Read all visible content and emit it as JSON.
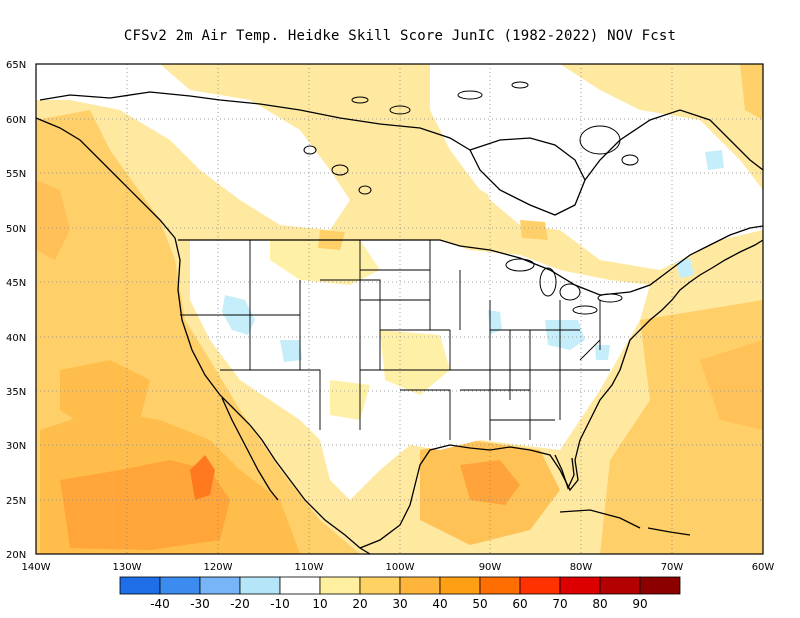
{
  "title": "CFSv2  2m Air Temp. Heidke Skill Score JunIC (1982-2022) NOV Fcst",
  "map": {
    "lat_labels": [
      "65N",
      "60N",
      "55N",
      "50N",
      "45N",
      "40N",
      "35N",
      "30N",
      "25N",
      "20N"
    ],
    "lon_labels": [
      "140W",
      "130W",
      "120W",
      "110W",
      "100W",
      "90W",
      "80W",
      "70W",
      "60W"
    ],
    "extent": {
      "lon_min": -140,
      "lon_max": -60,
      "lat_min": 20,
      "lat_max": 65
    },
    "gridlines": "dotted"
  },
  "colorbar": {
    "labels": [
      "-40",
      "-30",
      "-20",
      "-10",
      "10",
      "20",
      "30",
      "40",
      "50",
      "60",
      "70",
      "80",
      "90"
    ],
    "colors": [
      "#1e6ee8",
      "#3c8cf0",
      "#78b4f8",
      "#b4e6f8",
      "#ffffff",
      "#fff0a0",
      "#ffd264",
      "#ffb43c",
      "#ffa014",
      "#ff6e00",
      "#ff3200",
      "#dc0000",
      "#b40000",
      "#8c0000"
    ]
  },
  "palette": {
    "land_base": "#ffe89a",
    "ocean_base": "#ffd46e",
    "neutral": "#ffffff",
    "light_yellow": "#fff4b4",
    "orange": "#ffb43c",
    "dark_orange": "#ff8c1e",
    "red_orange": "#ff6414",
    "cyan": "#c8eefa"
  }
}
